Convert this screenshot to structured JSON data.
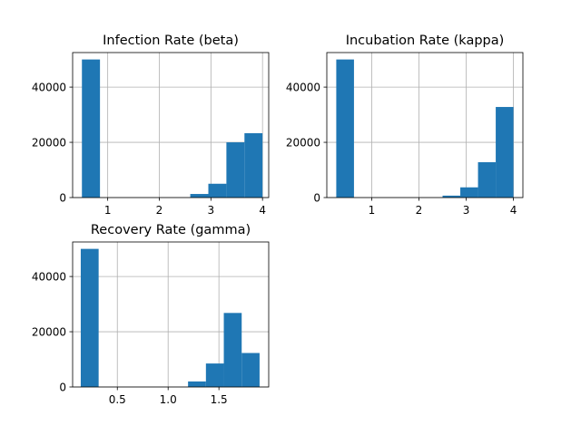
{
  "chart_data": [
    {
      "type": "bar",
      "title": "Infection Rate (beta)",
      "xlim": [
        0.32,
        4.12
      ],
      "ylim": [
        0,
        52500
      ],
      "xticks": [
        1,
        2,
        3,
        4
      ],
      "yticks": [
        0,
        20000,
        40000
      ],
      "bins": [
        {
          "x0": 0.5,
          "x1": 0.85,
          "count": 50000
        },
        {
          "x0": 0.85,
          "x1": 1.2,
          "count": 0
        },
        {
          "x0": 1.2,
          "x1": 1.55,
          "count": 0
        },
        {
          "x0": 1.55,
          "x1": 1.9,
          "count": 0
        },
        {
          "x0": 1.9,
          "x1": 2.25,
          "count": 0
        },
        {
          "x0": 2.25,
          "x1": 2.6,
          "count": 0
        },
        {
          "x0": 2.6,
          "x1": 2.95,
          "count": 1300
        },
        {
          "x0": 2.95,
          "x1": 3.3,
          "count": 5000
        },
        {
          "x0": 3.3,
          "x1": 3.65,
          "count": 20000
        },
        {
          "x0": 3.65,
          "x1": 4.0,
          "count": 23300
        }
      ]
    },
    {
      "type": "bar",
      "title": "Incubation Rate (kappa)",
      "xlim": [
        0.05,
        4.2
      ],
      "ylim": [
        0,
        52500
      ],
      "xticks": [
        1,
        2,
        3,
        4
      ],
      "yticks": [
        0,
        20000,
        40000
      ],
      "bins": [
        {
          "x0": 0.25,
          "x1": 0.625,
          "count": 50000
        },
        {
          "x0": 0.625,
          "x1": 1.0,
          "count": 0
        },
        {
          "x0": 1.0,
          "x1": 1.375,
          "count": 0
        },
        {
          "x0": 1.375,
          "x1": 1.75,
          "count": 0
        },
        {
          "x0": 1.75,
          "x1": 2.125,
          "count": 0
        },
        {
          "x0": 2.125,
          "x1": 2.5,
          "count": 0
        },
        {
          "x0": 2.5,
          "x1": 2.875,
          "count": 700
        },
        {
          "x0": 2.875,
          "x1": 3.25,
          "count": 3700
        },
        {
          "x0": 3.25,
          "x1": 3.625,
          "count": 12800
        },
        {
          "x0": 3.625,
          "x1": 4.0,
          "count": 32800
        }
      ]
    },
    {
      "type": "bar",
      "title": "Recovery Rate (gamma)",
      "xlim": [
        0.06,
        1.99
      ],
      "ylim": [
        0,
        52500
      ],
      "xticks": [
        0.5,
        1.0,
        1.5
      ],
      "yticks": [
        0,
        20000,
        40000
      ],
      "bins": [
        {
          "x0": 0.14,
          "x1": 0.316,
          "count": 50000
        },
        {
          "x0": 0.316,
          "x1": 0.492,
          "count": 0
        },
        {
          "x0": 0.492,
          "x1": 0.668,
          "count": 0
        },
        {
          "x0": 0.668,
          "x1": 0.844,
          "count": 0
        },
        {
          "x0": 0.844,
          "x1": 1.02,
          "count": 0
        },
        {
          "x0": 1.02,
          "x1": 1.196,
          "count": 0
        },
        {
          "x0": 1.196,
          "x1": 1.372,
          "count": 2000
        },
        {
          "x0": 1.372,
          "x1": 1.548,
          "count": 8500
        },
        {
          "x0": 1.548,
          "x1": 1.724,
          "count": 26800
        },
        {
          "x0": 1.724,
          "x1": 1.9,
          "count": 12300
        }
      ]
    }
  ],
  "colors": {
    "bar": "#1f77b4",
    "grid": "#b0b0b0"
  }
}
